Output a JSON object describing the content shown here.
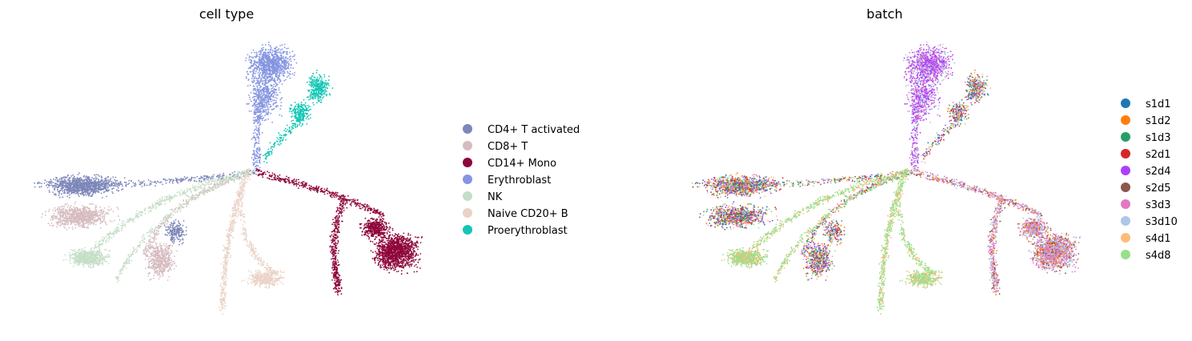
{
  "chart_data": [
    {
      "type": "scatter",
      "title": "cell type",
      "xlabel": "",
      "ylabel": "",
      "grid": false,
      "axes_visible": false,
      "legend_position": "right",
      "legend": [
        {
          "name": "CD4+ T activated",
          "color": "#7d87b9"
        },
        {
          "name": "CD8+ T",
          "color": "#d6bcc0"
        },
        {
          "name": "CD14+ Mono",
          "color": "#8e063b"
        },
        {
          "name": "Erythroblast",
          "color": "#8595e1"
        },
        {
          "name": "NK",
          "color": "#c6dec7"
        },
        {
          "name": "Naive CD20+ B",
          "color": "#ead3c6"
        },
        {
          "name": "Proerythroblast",
          "color": "#11c6b4"
        }
      ]
    },
    {
      "type": "scatter",
      "title": "batch",
      "xlabel": "",
      "ylabel": "",
      "grid": false,
      "axes_visible": false,
      "legend_position": "right",
      "legend": [
        {
          "name": "s1d1",
          "color": "#1f77b4"
        },
        {
          "name": "s1d2",
          "color": "#ff7f0e"
        },
        {
          "name": "s1d3",
          "color": "#279e68"
        },
        {
          "name": "s2d1",
          "color": "#d62728"
        },
        {
          "name": "s2d4",
          "color": "#aa40fc"
        },
        {
          "name": "s2d5",
          "color": "#8c564b"
        },
        {
          "name": "s3d3",
          "color": "#e377c2"
        },
        {
          "name": "s3d10",
          "color": "#aec7e8"
        },
        {
          "name": "s4d1",
          "color": "#ffbb78"
        },
        {
          "name": "s4d8",
          "color": "#98df8a"
        }
      ]
    }
  ]
}
